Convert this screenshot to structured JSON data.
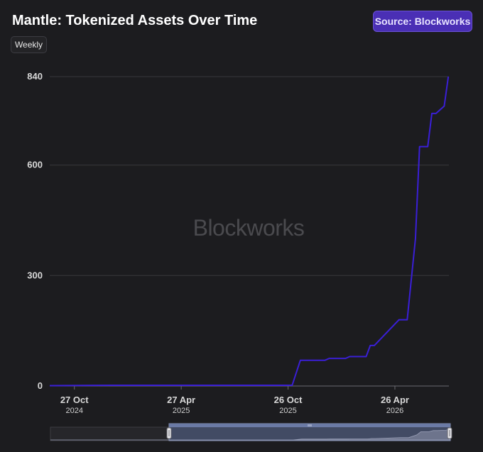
{
  "header": {
    "title": "Mantle: Tokenized Assets Over Time",
    "source_label": "Source: Blockworks",
    "interval_label": "Weekly"
  },
  "watermark": "Blockworks",
  "colors": {
    "background": "#1c1c1f",
    "line": "#3a1fd6",
    "grid": "#38383c",
    "badge": "#4a2fb5"
  },
  "chart_data": {
    "type": "line",
    "title": "Mantle: Tokenized Assets Over Time",
    "xlabel": "",
    "ylabel": "",
    "ylim": [
      0,
      840
    ],
    "yticks": [
      {
        "value": 0,
        "label": "0"
      },
      {
        "value": 300,
        "label": "300"
      },
      {
        "value": 600,
        "label": "600"
      },
      {
        "value": 840,
        "label": "840"
      }
    ],
    "xlim": [
      "2024-09-15",
      "2026-07-27"
    ],
    "xticks": [
      {
        "date": "2024-10-27",
        "label": "27 Oct",
        "sublabel": "2024"
      },
      {
        "date": "2025-04-27",
        "label": "27 Apr",
        "sublabel": "2025"
      },
      {
        "date": "2025-10-26",
        "label": "26 Oct",
        "sublabel": "2025"
      },
      {
        "date": "2026-04-26",
        "label": "26 Apr",
        "sublabel": "2026"
      }
    ],
    "grid": true,
    "legend": "none",
    "series": [
      {
        "x": [
          "2024-09-15",
          "2024-12-29",
          "2025-06-01",
          "2025-11-02",
          "2025-11-16",
          "2025-11-23",
          "2025-12-28",
          "2026-01-04",
          "2026-02-01",
          "2026-02-08",
          "2026-03-08",
          "2026-03-15",
          "2026-03-22",
          "2026-05-03",
          "2026-05-10",
          "2026-05-17",
          "2026-05-31",
          "2026-06-07",
          "2026-06-21",
          "2026-06-28",
          "2026-07-05",
          "2026-07-19",
          "2026-07-26"
        ],
        "y": [
          1,
          2,
          2,
          2,
          70,
          70,
          70,
          75,
          75,
          80,
          80,
          110,
          110,
          180,
          180,
          180,
          400,
          650,
          650,
          740,
          740,
          760,
          840
        ]
      }
    ]
  }
}
